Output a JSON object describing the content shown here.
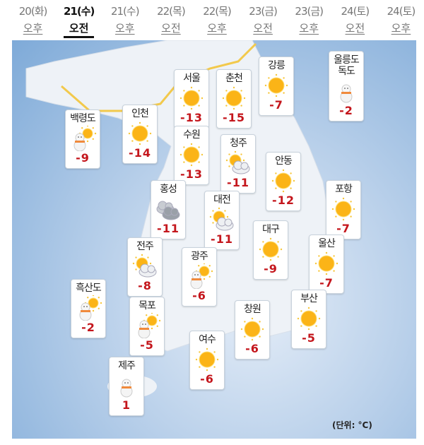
{
  "tabs": [
    {
      "date": "20(화)",
      "period": "오후"
    },
    {
      "date": "21(수)",
      "period": "오전",
      "active": true
    },
    {
      "date": "21(수)",
      "period": "오후"
    },
    {
      "date": "22(목)",
      "period": "오전"
    },
    {
      "date": "22(목)",
      "period": "오후"
    },
    {
      "date": "23(금)",
      "period": "오전"
    },
    {
      "date": "23(금)",
      "period": "오후"
    },
    {
      "date": "24(토)",
      "period": "오전"
    },
    {
      "date": "24(토)",
      "period": "오후"
    }
  ],
  "cities": [
    {
      "name": "백령도",
      "temp": "-9",
      "weather": "snow-sun"
    },
    {
      "name": "인천",
      "temp": "-14",
      "weather": "sunny"
    },
    {
      "name": "서울",
      "temp": "-13",
      "weather": "sunny"
    },
    {
      "name": "수원",
      "temp": "-13",
      "weather": "sunny"
    },
    {
      "name": "춘천",
      "temp": "-15",
      "weather": "sunny"
    },
    {
      "name": "강릉",
      "temp": "-7",
      "weather": "sunny"
    },
    {
      "name": "울릉도\n독도",
      "temp": "-2",
      "weather": "snow"
    },
    {
      "name": "청주",
      "temp": "-11",
      "weather": "partly-cloudy"
    },
    {
      "name": "안동",
      "temp": "-12",
      "weather": "sunny"
    },
    {
      "name": "홍성",
      "temp": "-11",
      "weather": "cloudy"
    },
    {
      "name": "대전",
      "temp": "-11",
      "weather": "partly-cloudy"
    },
    {
      "name": "포항",
      "temp": "-7",
      "weather": "sunny"
    },
    {
      "name": "대구",
      "temp": "-9",
      "weather": "sunny"
    },
    {
      "name": "울산",
      "temp": "-7",
      "weather": "sunny"
    },
    {
      "name": "전주",
      "temp": "-8",
      "weather": "partly-cloudy"
    },
    {
      "name": "광주",
      "temp": "-6",
      "weather": "snow-sun"
    },
    {
      "name": "흑산도",
      "temp": "-2",
      "weather": "snow-sun"
    },
    {
      "name": "목포",
      "temp": "-5",
      "weather": "snow-sun"
    },
    {
      "name": "부산",
      "temp": "-5",
      "weather": "sunny"
    },
    {
      "name": "창원",
      "temp": "-6",
      "weather": "sunny"
    },
    {
      "name": "여수",
      "temp": "-6",
      "weather": "sunny"
    },
    {
      "name": "제주",
      "temp": "1",
      "weather": "snow"
    }
  ],
  "unit_label": "(단위: °C)",
  "colors": {
    "temp": "#c4161c",
    "sea": "#8fb6e0",
    "land": "#eef2f7",
    "border_line": "#f2c94c"
  }
}
